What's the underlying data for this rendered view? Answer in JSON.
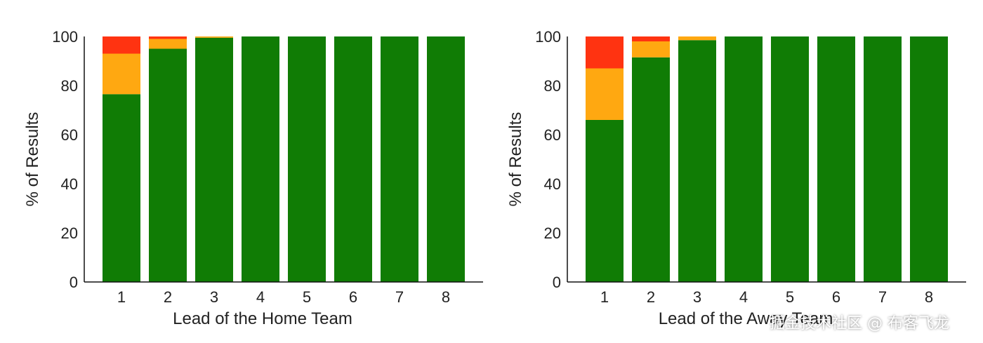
{
  "chart_data": [
    {
      "type": "bar",
      "stacked": true,
      "xlabel": "Lead of the Home Team",
      "ylabel": "% of Results",
      "ylim": [
        0,
        100
      ],
      "yticks": [
        "0",
        "20",
        "40",
        "60",
        "80",
        "100"
      ],
      "categories": [
        "1",
        "2",
        "3",
        "4",
        "5",
        "6",
        "7",
        "8"
      ],
      "grid": false,
      "legend": "none",
      "series": [
        {
          "color": "#107c05",
          "values": [
            76.5,
            95,
            99.5,
            100,
            100,
            100,
            100,
            100
          ]
        },
        {
          "color": "#ffa811",
          "values": [
            16.5,
            4,
            0.5,
            0,
            0,
            0,
            0,
            0
          ]
        },
        {
          "color": "#ff3311",
          "values": [
            7,
            1,
            0,
            0,
            0,
            0,
            0,
            0
          ]
        }
      ]
    },
    {
      "type": "bar",
      "stacked": true,
      "xlabel": "Lead of the Away Team",
      "ylabel": "% of Results",
      "ylim": [
        0,
        100
      ],
      "yticks": [
        "0",
        "20",
        "40",
        "60",
        "80",
        "100"
      ],
      "categories": [
        "1",
        "2",
        "3",
        "4",
        "5",
        "6",
        "7",
        "8"
      ],
      "grid": false,
      "legend": "none",
      "series": [
        {
          "color": "#107c05",
          "values": [
            66,
            91.5,
            98.5,
            100,
            100,
            100,
            100,
            100
          ]
        },
        {
          "color": "#ffa811",
          "values": [
            21,
            6.5,
            1.5,
            0,
            0,
            0,
            0,
            0
          ]
        },
        {
          "color": "#ff3311",
          "values": [
            13,
            2,
            0,
            0,
            0,
            0,
            0,
            0
          ]
        }
      ]
    }
  ],
  "watermark": "掘金技术社区 @ 布客飞龙"
}
